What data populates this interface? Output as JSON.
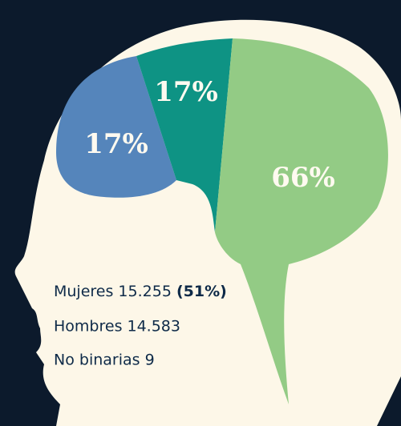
{
  "segments": [
    {
      "label": "17%"
    },
    {
      "label": "17%"
    },
    {
      "label": "66%"
    }
  ],
  "lines": [
    {
      "text": "Mujeres 15.255",
      "bold": "(51%)"
    },
    {
      "text": "Hombres 14.583"
    },
    {
      "text": "No binarias 9"
    }
  ]
}
